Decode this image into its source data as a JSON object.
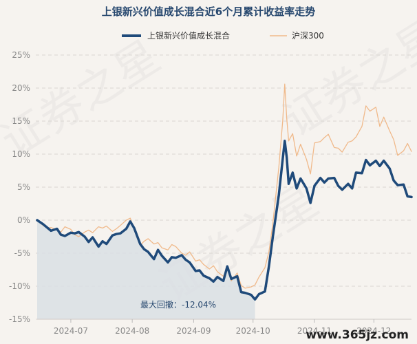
{
  "chart_data": {
    "type": "line",
    "title": "上银新兴价值成长混合近6个月累计收益率走势",
    "y_axis": {
      "min": -15,
      "max": 25,
      "step": 5,
      "tick_labels": [
        "25%",
        "20%",
        "15%",
        "10%",
        "5%",
        "0%",
        "-5%",
        "-10%",
        "-15%"
      ]
    },
    "x_axis": {
      "start": "2024-06-14",
      "end": "2024-12-20",
      "ticks": [
        {
          "date": "2024-07-01",
          "label": "2024-07"
        },
        {
          "date": "2024-08-01",
          "label": "2024-08"
        },
        {
          "date": "2024-09-01",
          "label": "2024-09"
        },
        {
          "date": "2024-10-01",
          "label": "2024-10"
        },
        {
          "date": "2024-11-01",
          "label": "2024-11"
        },
        {
          "date": "2024-12-01",
          "label": "2024-12"
        }
      ]
    },
    "legend": {
      "position": "top"
    },
    "grid": {
      "horizontal": true,
      "style": "dashed"
    },
    "series": [
      {
        "name": "上银新兴价值成长混合",
        "color": "#1f4a7a",
        "points": [
          [
            "2024-06-14",
            0.0
          ],
          [
            "2024-06-17",
            -0.6
          ],
          [
            "2024-06-19",
            -1.1
          ],
          [
            "2024-06-21",
            -1.6
          ],
          [
            "2024-06-24",
            -1.3
          ],
          [
            "2024-06-26",
            -2.2
          ],
          [
            "2024-06-28",
            -2.4
          ],
          [
            "2024-07-01",
            -1.9
          ],
          [
            "2024-07-03",
            -2.0
          ],
          [
            "2024-07-05",
            -1.8
          ],
          [
            "2024-07-08",
            -2.5
          ],
          [
            "2024-07-10",
            -3.3
          ],
          [
            "2024-07-12",
            -2.6
          ],
          [
            "2024-07-15",
            -4.0
          ],
          [
            "2024-07-17",
            -3.2
          ],
          [
            "2024-07-19",
            -3.6
          ],
          [
            "2024-07-22",
            -2.3
          ],
          [
            "2024-07-24",
            -2.1
          ],
          [
            "2024-07-26",
            -2.0
          ],
          [
            "2024-07-29",
            -1.3
          ],
          [
            "2024-07-31",
            -0.2
          ],
          [
            "2024-08-02",
            -1.2
          ],
          [
            "2024-08-05",
            -3.6
          ],
          [
            "2024-08-07",
            -4.4
          ],
          [
            "2024-08-09",
            -4.8
          ],
          [
            "2024-08-12",
            -5.9
          ],
          [
            "2024-08-14",
            -4.5
          ],
          [
            "2024-08-16",
            -5.4
          ],
          [
            "2024-08-19",
            -6.4
          ],
          [
            "2024-08-21",
            -5.6
          ],
          [
            "2024-08-23",
            -5.7
          ],
          [
            "2024-08-26",
            -5.3
          ],
          [
            "2024-08-28",
            -6.0
          ],
          [
            "2024-08-30",
            -6.4
          ],
          [
            "2024-09-02",
            -7.7
          ],
          [
            "2024-09-04",
            -7.6
          ],
          [
            "2024-09-06",
            -8.4
          ],
          [
            "2024-09-09",
            -8.8
          ],
          [
            "2024-09-11",
            -9.3
          ],
          [
            "2024-09-13",
            -8.6
          ],
          [
            "2024-09-16",
            -9.2
          ],
          [
            "2024-09-18",
            -7.0
          ],
          [
            "2024-09-20",
            -8.9
          ],
          [
            "2024-09-23",
            -8.5
          ],
          [
            "2024-09-25",
            -10.9
          ],
          [
            "2024-09-27",
            -11.0
          ],
          [
            "2024-09-30",
            -11.3
          ],
          [
            "2024-10-02",
            -12.0
          ],
          [
            "2024-10-04",
            -11.2
          ],
          [
            "2024-10-07",
            -10.8
          ],
          [
            "2024-10-09",
            -7.0
          ],
          [
            "2024-10-11",
            -2.5
          ],
          [
            "2024-10-14",
            3.8
          ],
          [
            "2024-10-16",
            9.3
          ],
          [
            "2024-10-17",
            12.0
          ],
          [
            "2024-10-18",
            9.5
          ],
          [
            "2024-10-19",
            5.5
          ],
          [
            "2024-10-21",
            7.2
          ],
          [
            "2024-10-23",
            4.8
          ],
          [
            "2024-10-25",
            6.3
          ],
          [
            "2024-10-28",
            4.8
          ],
          [
            "2024-10-30",
            2.6
          ],
          [
            "2024-11-01",
            5.2
          ],
          [
            "2024-11-04",
            6.4
          ],
          [
            "2024-11-06",
            5.7
          ],
          [
            "2024-11-08",
            6.3
          ],
          [
            "2024-11-11",
            6.4
          ],
          [
            "2024-11-13",
            5.2
          ],
          [
            "2024-11-15",
            4.6
          ],
          [
            "2024-11-18",
            5.5
          ],
          [
            "2024-11-20",
            4.8
          ],
          [
            "2024-11-22",
            7.2
          ],
          [
            "2024-11-25",
            7.1
          ],
          [
            "2024-11-27",
            9.1
          ],
          [
            "2024-11-29",
            8.3
          ],
          [
            "2024-12-02",
            9.0
          ],
          [
            "2024-12-04",
            8.2
          ],
          [
            "2024-12-06",
            9.0
          ],
          [
            "2024-12-09",
            7.8
          ],
          [
            "2024-12-11",
            6.0
          ],
          [
            "2024-12-13",
            5.3
          ],
          [
            "2024-12-16",
            5.4
          ],
          [
            "2024-12-18",
            3.6
          ],
          [
            "2024-12-20",
            3.5
          ]
        ]
      },
      {
        "name": "沪深300",
        "color": "#f0b98a",
        "points": [
          [
            "2024-06-14",
            0.0
          ],
          [
            "2024-06-17",
            -0.8
          ],
          [
            "2024-06-19",
            -1.2
          ],
          [
            "2024-06-21",
            -1.1
          ],
          [
            "2024-06-24",
            -1.5
          ],
          [
            "2024-06-26",
            -1.8
          ],
          [
            "2024-06-28",
            -1.0
          ],
          [
            "2024-07-01",
            -1.4
          ],
          [
            "2024-07-03",
            -2.2
          ],
          [
            "2024-07-05",
            -2.5
          ],
          [
            "2024-07-08",
            -1.8
          ],
          [
            "2024-07-10",
            -1.5
          ],
          [
            "2024-07-12",
            -1.9
          ],
          [
            "2024-07-15",
            -1.0
          ],
          [
            "2024-07-17",
            -1.2
          ],
          [
            "2024-07-19",
            -0.9
          ],
          [
            "2024-07-22",
            -1.7
          ],
          [
            "2024-07-24",
            -1.3
          ],
          [
            "2024-07-26",
            -0.8
          ],
          [
            "2024-07-29",
            0.0
          ],
          [
            "2024-07-31",
            0.3
          ],
          [
            "2024-08-02",
            -1.5
          ],
          [
            "2024-08-05",
            -3.8
          ],
          [
            "2024-08-07",
            -3.2
          ],
          [
            "2024-08-09",
            -2.8
          ],
          [
            "2024-08-12",
            -3.6
          ],
          [
            "2024-08-14",
            -3.4
          ],
          [
            "2024-08-16",
            -4.2
          ],
          [
            "2024-08-19",
            -4.5
          ],
          [
            "2024-08-21",
            -3.7
          ],
          [
            "2024-08-23",
            -4.0
          ],
          [
            "2024-08-26",
            -5.0
          ],
          [
            "2024-08-28",
            -5.3
          ],
          [
            "2024-08-30",
            -4.8
          ],
          [
            "2024-09-02",
            -6.2
          ],
          [
            "2024-09-04",
            -6.0
          ],
          [
            "2024-09-06",
            -6.7
          ],
          [
            "2024-09-09",
            -7.4
          ],
          [
            "2024-09-11",
            -6.9
          ],
          [
            "2024-09-13",
            -7.8
          ],
          [
            "2024-09-16",
            -8.5
          ],
          [
            "2024-09-18",
            -7.3
          ],
          [
            "2024-09-20",
            -9.2
          ],
          [
            "2024-09-23",
            -8.0
          ],
          [
            "2024-09-25",
            -9.9
          ],
          [
            "2024-09-27",
            -10.3
          ],
          [
            "2024-09-30",
            -10.1
          ],
          [
            "2024-10-02",
            -9.8
          ],
          [
            "2024-10-04",
            -8.6
          ],
          [
            "2024-10-07",
            -7.2
          ],
          [
            "2024-10-09",
            -4.8
          ],
          [
            "2024-10-11",
            -0.5
          ],
          [
            "2024-10-14",
            8.0
          ],
          [
            "2024-10-16",
            15.1
          ],
          [
            "2024-10-17",
            20.6
          ],
          [
            "2024-10-18",
            15.4
          ],
          [
            "2024-10-19",
            12.0
          ],
          [
            "2024-10-21",
            13.1
          ],
          [
            "2024-10-23",
            9.7
          ],
          [
            "2024-10-25",
            11.5
          ],
          [
            "2024-10-28",
            9.2
          ],
          [
            "2024-10-30",
            7.0
          ],
          [
            "2024-11-01",
            11.7
          ],
          [
            "2024-11-04",
            11.9
          ],
          [
            "2024-11-06",
            12.5
          ],
          [
            "2024-11-08",
            13.0
          ],
          [
            "2024-11-11",
            11.0
          ],
          [
            "2024-11-13",
            10.9
          ],
          [
            "2024-11-15",
            10.3
          ],
          [
            "2024-11-18",
            11.8
          ],
          [
            "2024-11-20",
            12.0
          ],
          [
            "2024-11-22",
            12.6
          ],
          [
            "2024-11-25",
            14.2
          ],
          [
            "2024-11-27",
            17.3
          ],
          [
            "2024-11-29",
            16.5
          ],
          [
            "2024-12-02",
            17.1
          ],
          [
            "2024-12-04",
            14.2
          ],
          [
            "2024-12-06",
            15.6
          ],
          [
            "2024-12-09",
            13.5
          ],
          [
            "2024-12-11",
            12.2
          ],
          [
            "2024-12-13",
            9.8
          ],
          [
            "2024-12-16",
            10.5
          ],
          [
            "2024-12-18",
            11.6
          ],
          [
            "2024-12-20",
            10.4
          ]
        ]
      }
    ],
    "annotation": {
      "max_drawdown_label": "最大回撤：-12.04%",
      "drawdown_start": "2024-06-14",
      "drawdown_end": "2024-10-02",
      "drawdown_min": -12.04
    },
    "watermark_text": "证券之星",
    "site_label": "www.365jz.com"
  }
}
